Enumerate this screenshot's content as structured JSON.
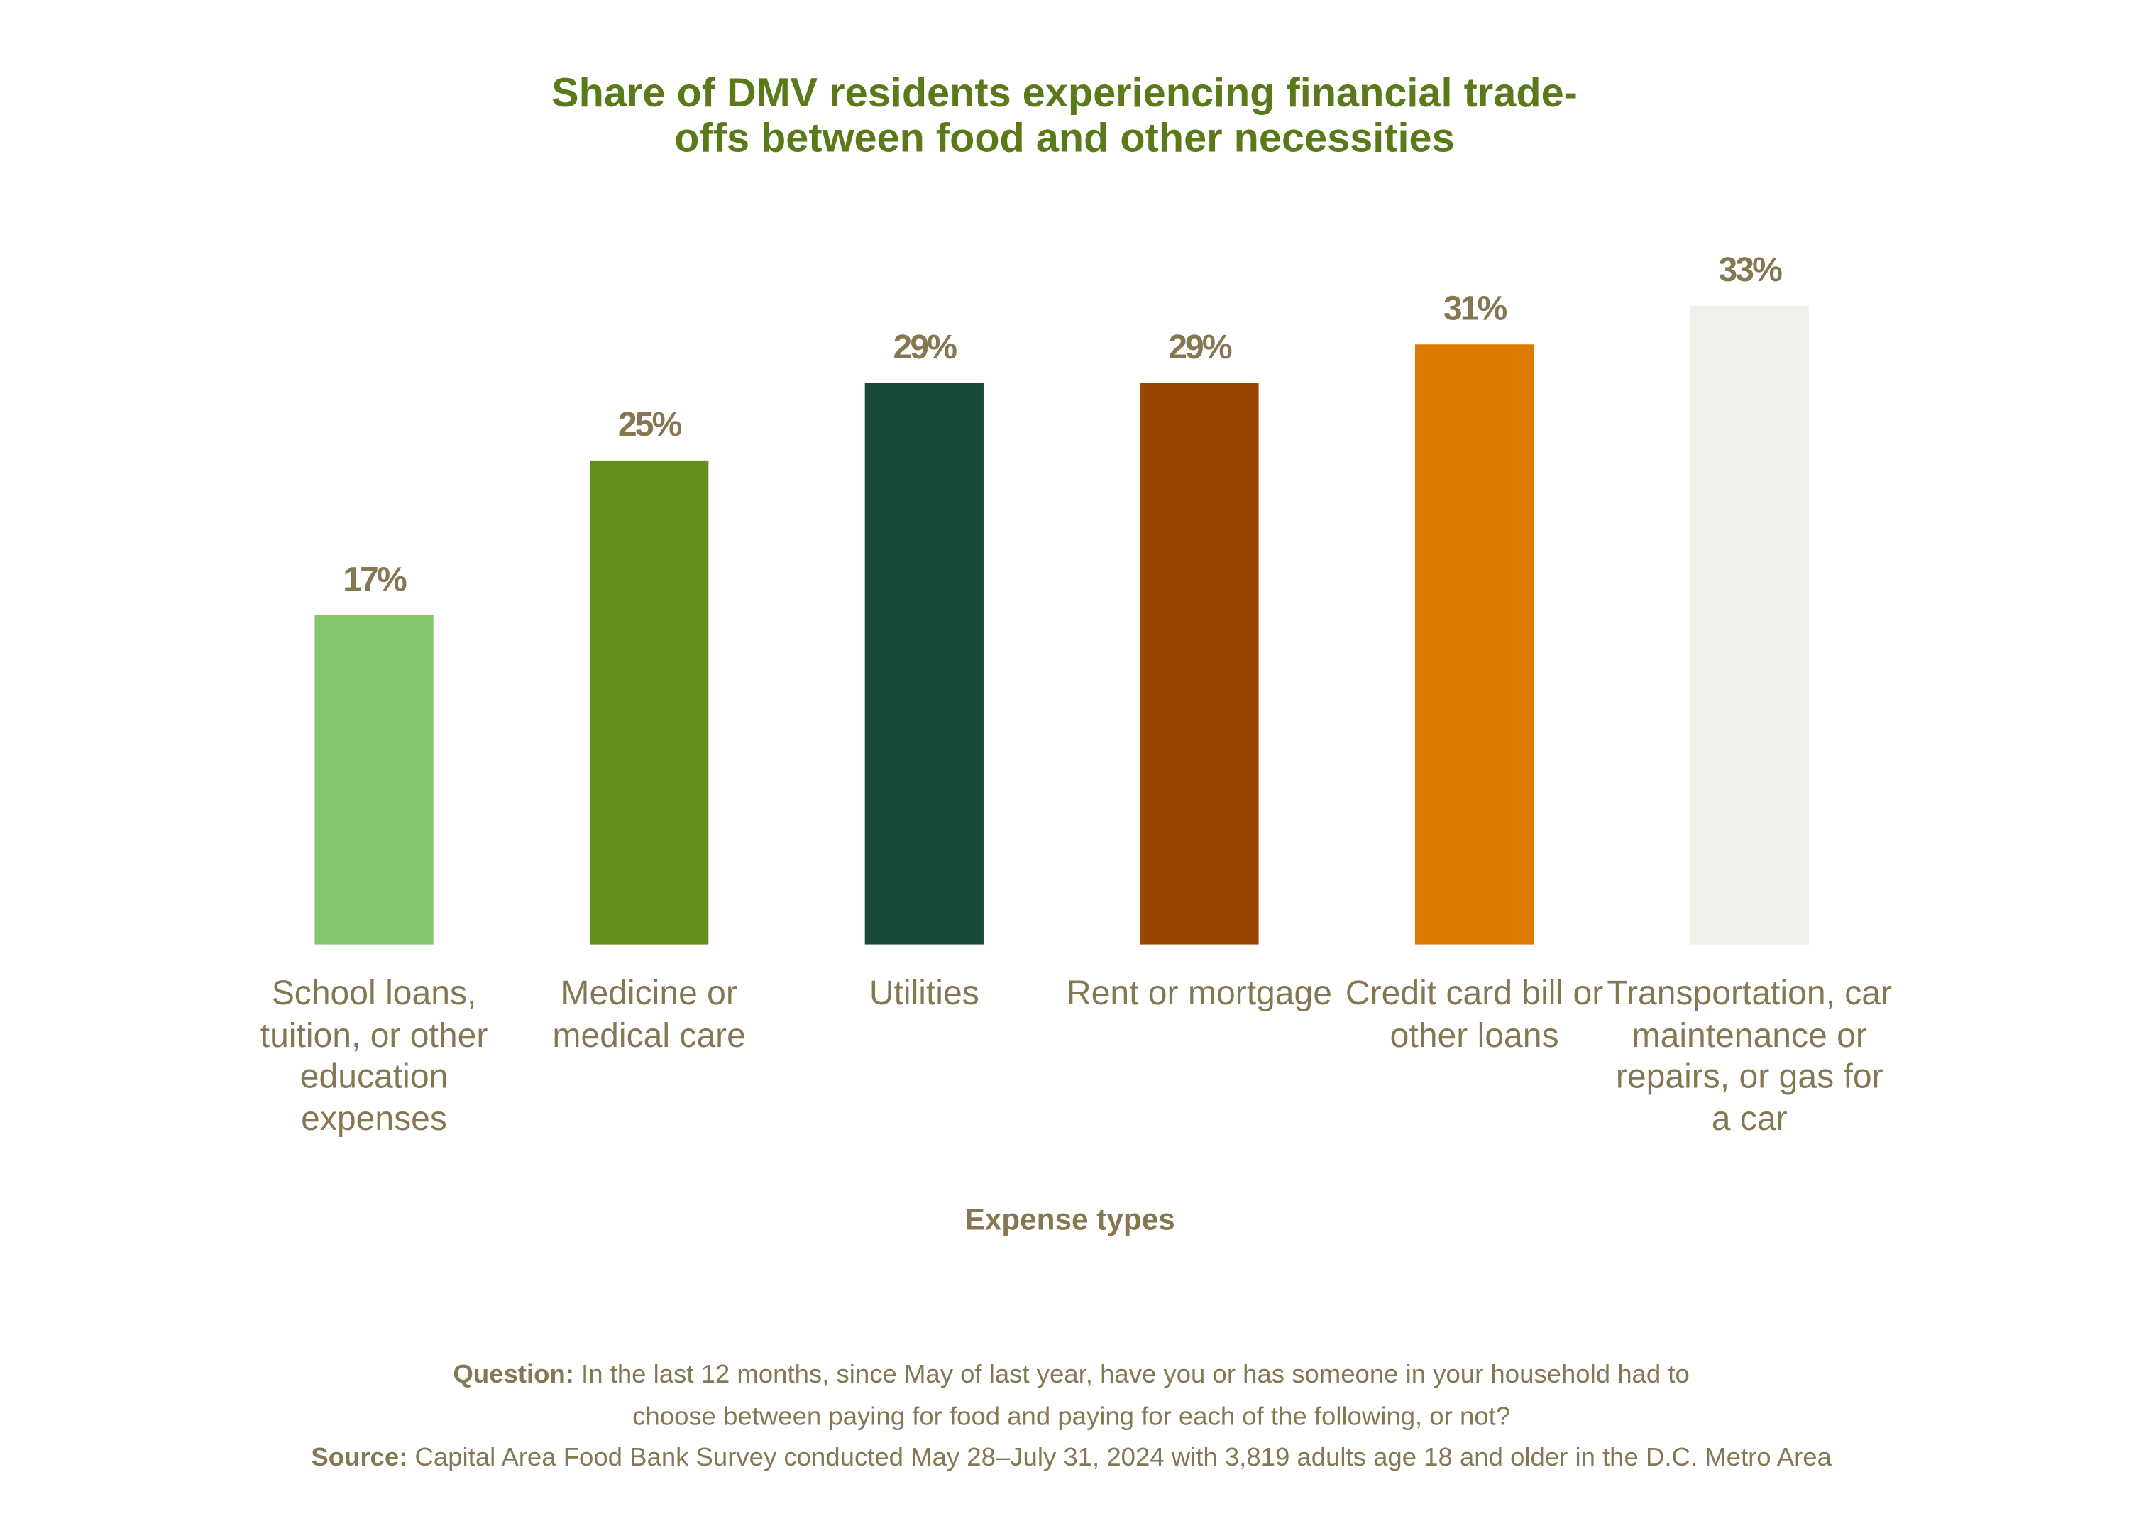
{
  "chart_data": {
    "type": "bar",
    "title": "Share of DMV residents experiencing financial trade-offs between food and other necessities",
    "categories": [
      "School loans, tuition, or other education expenses",
      "Medicine or medical care",
      "Utilities",
      "Rent or mortgage",
      "Credit card bill or other loans",
      "Transportation, car maintenance or repairs, or gas for a car"
    ],
    "values": [
      17,
      25,
      29,
      29,
      31,
      33
    ],
    "value_labels": [
      "17%",
      "25%",
      "29%",
      "29%",
      "31%",
      "33%"
    ],
    "colors": [
      "#83c56c",
      "#668c1f",
      "#194a37",
      "#994700",
      "#dd7a00",
      "#f0efea"
    ],
    "x_label": "Expense types",
    "footnote": {
      "question_label": "Question:",
      "question_text": "In the last 12 months, since May of last year, have you or has someone in your household had to choose between paying for food and paying for each of the following, or not?",
      "source_label": "Source:",
      "source_text": "Capital Area Food Bank Survey conducted May 28–July 31, 2024 with 3,819 adults age 18 and older in the D.C. Metro Area"
    }
  }
}
